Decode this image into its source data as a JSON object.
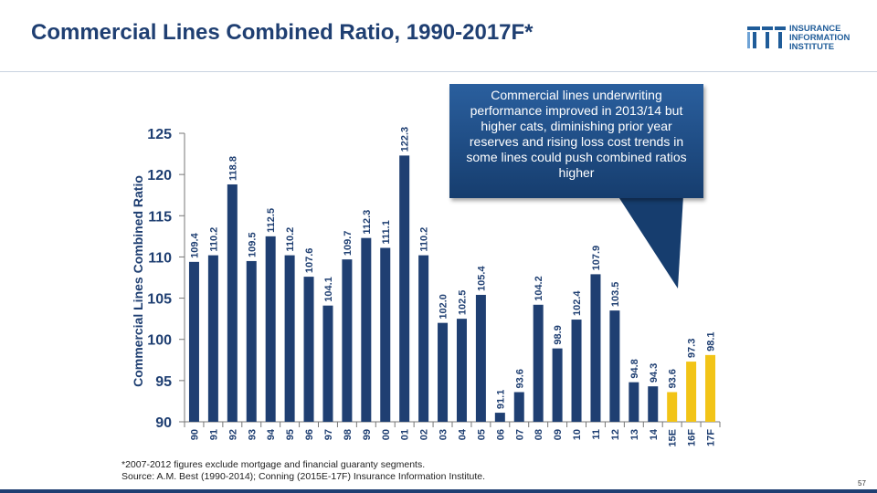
{
  "slide": {
    "title": "Commercial Lines Combined Ratio, 1990-2017F*",
    "logo_lines": [
      "INSURANCE",
      "INFORMATION",
      "INSTITUTE"
    ],
    "callout": "Commercial lines underwriting performance improved in 2013/14 but higher cats, diminishing prior year reserves and rising loss cost trends in some lines could push combined ratios higher",
    "footnote_lines": [
      "*2007-2012 figures exclude mortgage and financial guaranty segments.",
      "Source: A.M. Best (1990-2014); Conning (2015E-17F) Insurance Information Institute."
    ],
    "page_number": "57"
  },
  "chart_data": {
    "type": "bar",
    "title": "",
    "xlabel": "",
    "ylabel": "Commercial Lines Combined Ratio",
    "ylim": [
      90,
      125
    ],
    "yticks": [
      90,
      95,
      100,
      105,
      110,
      115,
      120,
      125
    ],
    "categories": [
      "90",
      "91",
      "92",
      "93",
      "94",
      "95",
      "96",
      "97",
      "98",
      "99",
      "00",
      "01",
      "02",
      "03",
      "04",
      "05",
      "06",
      "07",
      "08",
      "09",
      "10",
      "11",
      "12",
      "13",
      "14",
      "15E",
      "16F",
      "17F"
    ],
    "values": [
      109.4,
      110.2,
      118.8,
      109.5,
      112.5,
      110.2,
      107.6,
      104.1,
      109.7,
      112.3,
      111.1,
      122.3,
      110.2,
      102.0,
      102.5,
      105.4,
      91.1,
      93.6,
      104.2,
      98.9,
      102.4,
      107.9,
      103.5,
      94.8,
      94.3,
      93.6,
      97.3,
      98.1
    ],
    "value_labels": [
      "109.4",
      "110.2",
      "118.8",
      "109.5",
      "112.5",
      "110.2",
      "107.6",
      "104.1",
      "109.7",
      "112.3",
      "111.1",
      "122.3",
      "110.2",
      "102.0",
      "102.5",
      "105.4",
      "91.1",
      "93.6",
      "104.2",
      "98.9",
      "102.4",
      "107.9",
      "103.5",
      "94.8",
      "94.3",
      "93.6",
      "97.3",
      "98.1"
    ],
    "colors": {
      "actual": "#1f3f72",
      "forecast": "#f2c417"
    },
    "forecast_categories": [
      "15E",
      "16F",
      "17F"
    ],
    "grid": false
  }
}
